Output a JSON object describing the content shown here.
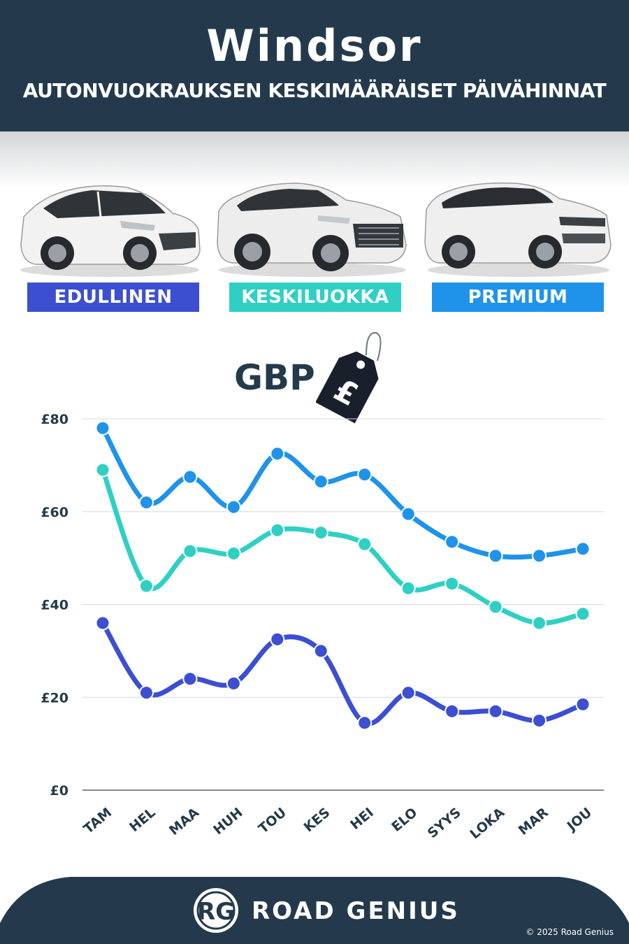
{
  "header": {
    "title": "Windsor",
    "subtitle": "AUTONVUOKRAUKSEN KESKIMÄÄRÄISET PÄIVÄHINNAT"
  },
  "categories": [
    {
      "label": "EDULLINEN",
      "color": "#3c4fd1"
    },
    {
      "label": "KESKILUOKKA",
      "color": "#2fd0c3"
    },
    {
      "label": "PREMIUM",
      "color": "#1f93ea"
    }
  ],
  "currency": {
    "label": "GBP",
    "icon": "price-tag-icon",
    "symbol": "£"
  },
  "chart_data": {
    "type": "line",
    "title": "",
    "xlabel": "",
    "ylabel": "",
    "x": [
      "TAM",
      "HEL",
      "MAA",
      "HUH",
      "TOU",
      "KES",
      "HEI",
      "ELO",
      "SYYS",
      "LOKA",
      "MAR",
      "JOU"
    ],
    "ylim": [
      0,
      80
    ],
    "yticks": [
      "£0",
      "£20",
      "£40",
      "£60",
      "£80"
    ],
    "ytick_values": [
      0,
      20,
      40,
      60,
      80
    ],
    "grid": true,
    "legend": "top (car category badges)",
    "series": [
      {
        "name": "PREMIUM",
        "color": "#1f93ea",
        "values": [
          78,
          62,
          67.5,
          61,
          72.5,
          66.5,
          68,
          59.5,
          53.5,
          50.5,
          50.5,
          52
        ]
      },
      {
        "name": "KESKILUOKKA",
        "color": "#2fd0c3",
        "values": [
          69,
          44,
          51.5,
          51,
          56,
          55.5,
          53,
          43.5,
          44.5,
          39.5,
          36,
          38
        ]
      },
      {
        "name": "EDULLINEN",
        "color": "#3c4fd1",
        "values": [
          36,
          21,
          24,
          23,
          32.5,
          30,
          14.5,
          21,
          17,
          17,
          15,
          18.5
        ]
      }
    ]
  },
  "footer": {
    "logo_text": "RG",
    "brand": "ROAD GENIUS",
    "copyright": "© 2025 Road Genius"
  }
}
